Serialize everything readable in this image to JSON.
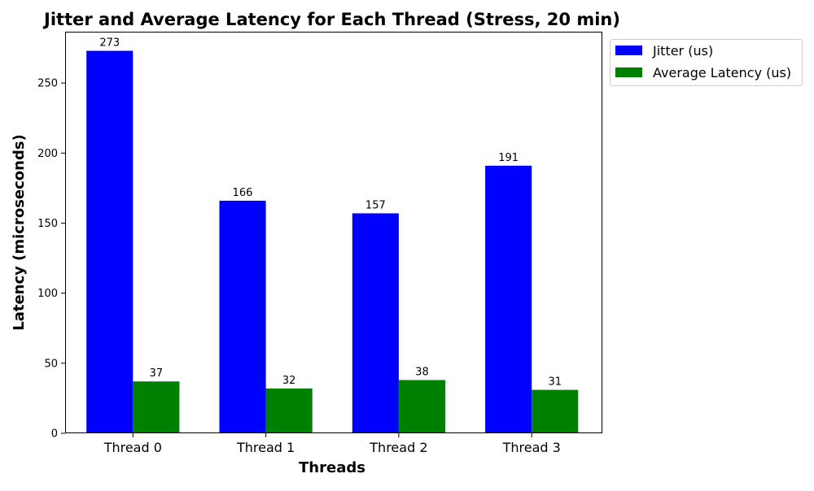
{
  "chart_data": {
    "type": "bar",
    "title": "Jitter and Average Latency for Each Thread (Stress, 20 min)",
    "xlabel": "Threads",
    "ylabel": "Latency (microseconds)",
    "categories": [
      "Thread 0",
      "Thread 1",
      "Thread 2",
      "Thread 3"
    ],
    "series": [
      {
        "name": "Jitter (us)",
        "values": [
          273,
          166,
          157,
          191
        ],
        "color": "#0000ff"
      },
      {
        "name": "Average Latency (us)",
        "values": [
          37,
          32,
          38,
          31
        ],
        "color": "#008000"
      }
    ],
    "ylim": [
      0,
      286.65
    ],
    "yticks": [
      0,
      50,
      100,
      150,
      200,
      250
    ],
    "data_labels": true,
    "grid": false,
    "legend_position": "outside top-right"
  }
}
